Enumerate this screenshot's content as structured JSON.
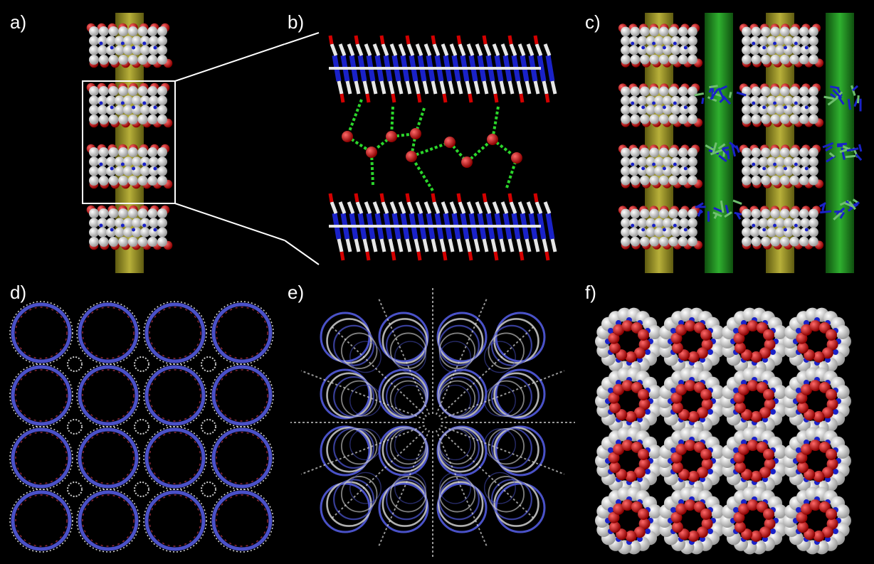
{
  "figure": {
    "panels": [
      {
        "id": "a",
        "label": "a)"
      },
      {
        "id": "b",
        "label": "b)"
      },
      {
        "id": "c",
        "label": "c)"
      },
      {
        "id": "d",
        "label": "d)"
      },
      {
        "id": "e",
        "label": "e)"
      },
      {
        "id": "f",
        "label": "f)"
      }
    ],
    "colors": {
      "background": "#000000",
      "carbon": "#dcdcdc",
      "nitrogen": "#1a22c8",
      "oxygen": "#d40000",
      "hbond": "#2bd62b",
      "channel_yellow": "#9a9420",
      "channel_green": "#1f8a1f"
    }
  }
}
